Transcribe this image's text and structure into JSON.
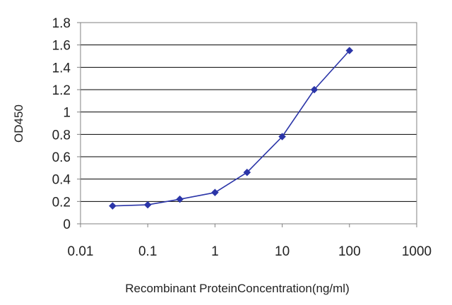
{
  "chart_data": {
    "type": "line",
    "title": "",
    "xlabel": "Recombinant ProteinConcentration(ng/ml)",
    "ylabel": "OD450",
    "x_scale": "log",
    "xlim": [
      0.01,
      1000
    ],
    "ylim": [
      0,
      1.8
    ],
    "x_ticks": [
      0.01,
      0.1,
      1,
      10,
      100,
      1000
    ],
    "x_tick_labels": [
      "0.01",
      "0.1",
      "1",
      "10",
      "100",
      "1000"
    ],
    "y_ticks": [
      0,
      0.2,
      0.4,
      0.6,
      0.8,
      1,
      1.2,
      1.4,
      1.6,
      1.8
    ],
    "y_tick_labels": [
      "0",
      "0.2",
      "0.4",
      "0.6",
      "0.8",
      "1",
      "1.2",
      "1.4",
      "1.6",
      "1.8"
    ],
    "grid": "horizontal",
    "legend": "none",
    "series": [
      {
        "color": "#2b35a8",
        "marker": "diamond",
        "x": [
          0.03,
          0.1,
          0.3,
          1,
          3,
          10,
          30,
          100
        ],
        "y": [
          0.16,
          0.17,
          0.22,
          0.28,
          0.46,
          0.78,
          1.2,
          1.55
        ]
      }
    ]
  }
}
